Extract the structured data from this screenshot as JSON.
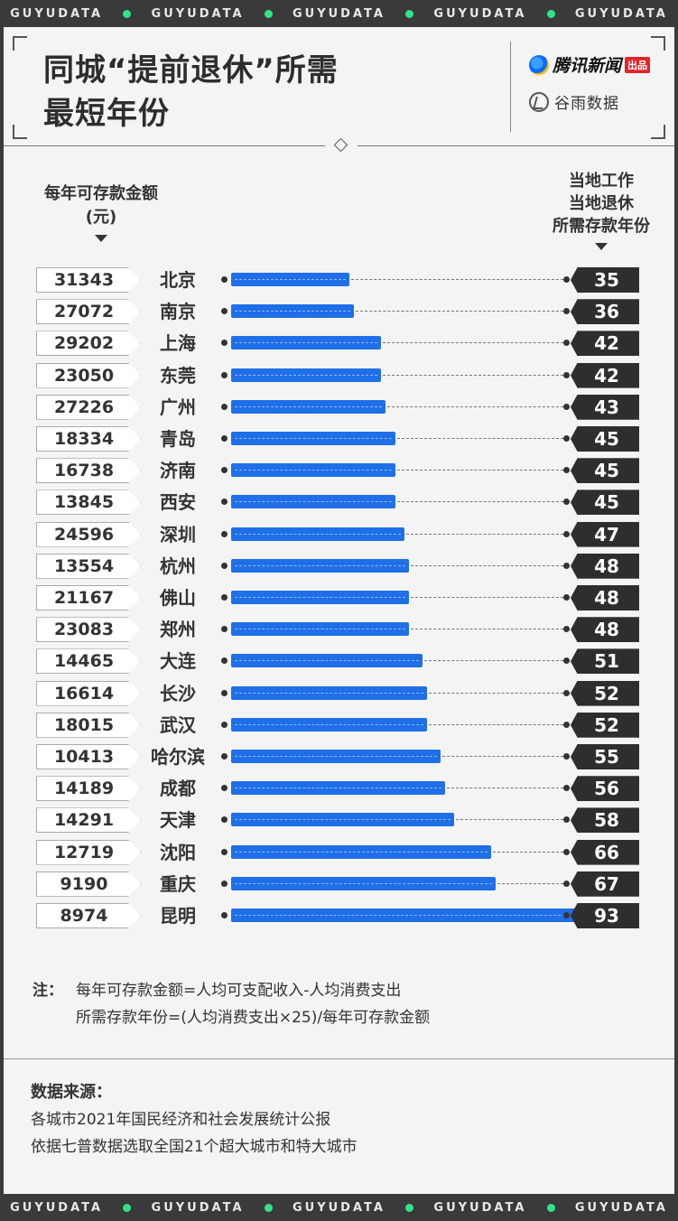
{
  "band_text": "GUYUDATA",
  "title": {
    "line1": "同城“提前退休”所需",
    "line2": "最短年份"
  },
  "brand": {
    "tencent_name": "腾讯新闻",
    "tencent_tag": "出品",
    "guyu_name": "谷雨数据"
  },
  "headers": {
    "left": [
      "每年可存款金额",
      "(元)"
    ],
    "right": [
      "当地工作",
      "当地退休",
      "所需存款年份"
    ]
  },
  "colors": {
    "bar": "#1e6fe8",
    "tag_dark": "#2e2e2e",
    "accent_dot": "#2ee58a"
  },
  "chart_data": {
    "type": "bar",
    "orientation": "horizontal",
    "title": "同城“提前退休”所需最短年份",
    "categories": [
      "北京",
      "南京",
      "上海",
      "东莞",
      "广州",
      "青岛",
      "济南",
      "西安",
      "深圳",
      "杭州",
      "佛山",
      "郑州",
      "大连",
      "长沙",
      "武汉",
      "哈尔滨",
      "成都",
      "天津",
      "沈阳",
      "重庆",
      "昆明"
    ],
    "series": [
      {
        "name": "当地工作当地退休所需存款年份",
        "values": [
          35,
          36,
          42,
          42,
          43,
          45,
          45,
          45,
          47,
          48,
          48,
          48,
          51,
          52,
          52,
          55,
          56,
          58,
          66,
          67,
          93
        ]
      },
      {
        "name": "每年可存款金额(元)",
        "values": [
          31343,
          27072,
          29202,
          23050,
          27226,
          18334,
          16738,
          13845,
          24596,
          13554,
          21167,
          23083,
          14465,
          16614,
          18015,
          10413,
          14189,
          14291,
          12719,
          9190,
          8974
        ]
      }
    ]
  },
  "note": {
    "label": "注：",
    "line1": "每年可存款金额=人均可支配收入-人均消费支出",
    "line2": "所需存款年份=(人均消费支出×25)/每年可存款金额"
  },
  "source": {
    "label": "数据来源：",
    "line1": "各城市2021年国民经济和社会发展统计公报",
    "line2": "依据七普数据选取全国21个超大城市和特大城市"
  }
}
